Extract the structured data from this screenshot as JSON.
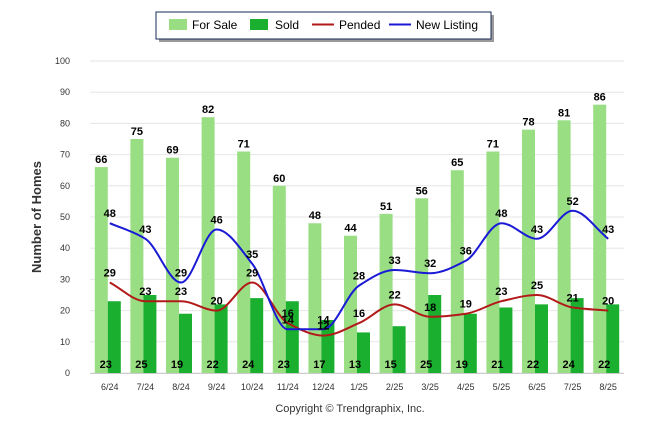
{
  "chart_data": {
    "type": "bar",
    "ylabel": "Number of Homes",
    "ylim": [
      0,
      100
    ],
    "yticks": [
      "0",
      "10",
      "20",
      "30",
      "40",
      "50",
      "60",
      "70",
      "80",
      "90",
      "100"
    ],
    "categories": [
      "6/24",
      "7/24",
      "8/24",
      "9/24",
      "10/24",
      "11/24",
      "12/24",
      "1/25",
      "2/25",
      "3/25",
      "4/25",
      "5/25",
      "6/25",
      "7/25",
      "8/25"
    ],
    "series": [
      {
        "name": "For Sale",
        "kind": "bar",
        "color": "#9ADE84",
        "values": [
          66,
          75,
          69,
          82,
          71,
          60,
          48,
          44,
          51,
          56,
          65,
          71,
          78,
          81,
          86
        ]
      },
      {
        "name": "Sold",
        "kind": "bar",
        "color": "#1AAF2E",
        "values": [
          23,
          25,
          19,
          22,
          24,
          23,
          17,
          13,
          15,
          25,
          19,
          21,
          22,
          24,
          22
        ]
      },
      {
        "name": "Pended",
        "kind": "line",
        "color": "#B21A1A",
        "values": [
          29,
          23,
          23,
          20,
          29,
          16,
          12,
          16,
          22,
          18,
          19,
          23,
          25,
          21,
          20
        ]
      },
      {
        "name": "New Listing",
        "kind": "line",
        "color": "#1A1AD6",
        "values": [
          48,
          43,
          29,
          46,
          35,
          14,
          14,
          28,
          33,
          32,
          36,
          48,
          43,
          52,
          43
        ]
      }
    ],
    "grid": true,
    "legend": "top-center",
    "footer": "Copyright © Trendgraphix, Inc."
  }
}
